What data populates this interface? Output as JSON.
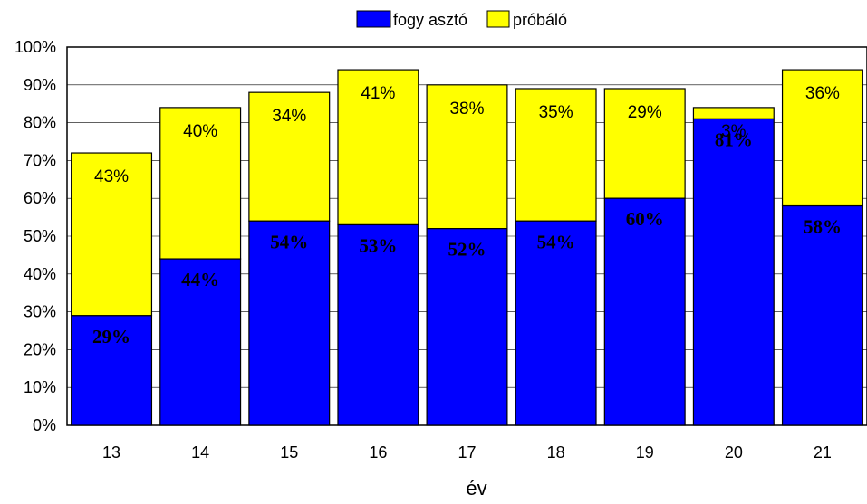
{
  "chart_data": {
    "type": "bar",
    "stacked": true,
    "categories": [
      "13",
      "14",
      "15",
      "16",
      "17",
      "18",
      "19",
      "20",
      "21"
    ],
    "series": [
      {
        "name": "fogy asztó",
        "color": "#0000ff",
        "values": [
          29,
          44,
          54,
          53,
          52,
          54,
          60,
          81,
          58
        ],
        "labels": [
          "29%",
          "44%",
          "54%",
          "53%",
          "52%",
          "54%",
          "60%",
          "81%",
          "58%"
        ]
      },
      {
        "name": "próbáló",
        "color": "#ffff00",
        "values": [
          43,
          40,
          34,
          41,
          38,
          35,
          29,
          3,
          36
        ],
        "labels": [
          "43%",
          "40%",
          "34%",
          "41%",
          "38%",
          "35%",
          "29%",
          "3%",
          "36%"
        ]
      }
    ],
    "xlabel": "év",
    "ylabel": "",
    "ylim": [
      0,
      100
    ],
    "yticks": [
      "0%",
      "10%",
      "20%",
      "30%",
      "40%",
      "50%",
      "60%",
      "70%",
      "80%",
      "90%",
      "100%"
    ],
    "grid": true,
    "legend_position": "top-center"
  }
}
